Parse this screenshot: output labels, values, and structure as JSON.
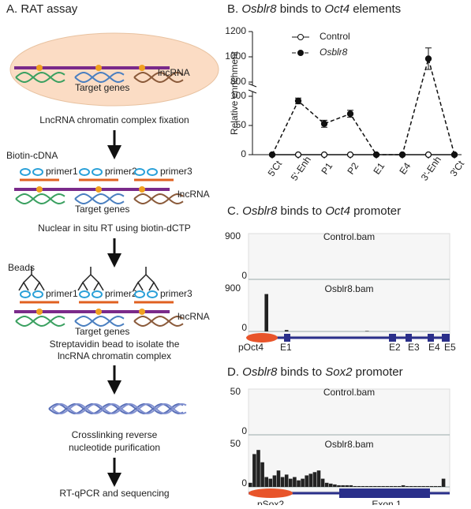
{
  "panel_a": {
    "title": "A. RAT assay",
    "lncrna": "lncRNA",
    "target_genes": "Target genes",
    "biotin_cdna": "Biotin-cDNA",
    "beads": "Beads",
    "primers": [
      "primer1",
      "primer2",
      "primer3"
    ],
    "steps": [
      "LncRNA chromatin complex fixation",
      "Nuclear in situ RT using biotin-dCTP",
      "Streptavidin bead to isolate the",
      "lncRNA chromatin complex",
      "Crosslinking reverse",
      "nucleotide purification",
      "RT-qPCR and sequencing"
    ]
  },
  "panel_b": {
    "title": [
      "B. ",
      "Osblr8",
      " binds to ",
      "Oct4",
      " elements"
    ],
    "chart": {
      "type": "line",
      "ylabel": "Relative enrichment",
      "categories": [
        "5'Ct",
        "5'-Enh",
        "P1",
        "P2",
        "E1",
        "E4",
        "3'-Enh",
        "3'Ct"
      ],
      "series": [
        {
          "name": "Control",
          "values": [
            0,
            0,
            0,
            0,
            0,
            0,
            0,
            0
          ]
        },
        {
          "name": "Osblr8",
          "values": [
            0,
            92,
            53,
            70,
            0,
            0,
            985,
            0
          ],
          "errors": [
            0,
            5,
            6,
            6,
            0,
            0,
            85,
            0
          ]
        }
      ],
      "ylim": [
        0,
        1200
      ],
      "ybreak": [
        100,
        800
      ],
      "yticks": [
        0,
        50,
        100,
        800,
        1000,
        1200
      ]
    }
  },
  "panel_c": {
    "title": [
      "C. ",
      "Osblr8",
      " binds to ",
      "Oct4",
      " promoter"
    ],
    "tracks": [
      {
        "name": "Control.bam",
        "max": 900,
        "min": 0
      },
      {
        "name": "Osblr8.bam",
        "max": 900,
        "min": 0,
        "coverage": [
          0,
          0,
          0,
          0,
          820,
          0,
          0,
          0,
          0,
          30,
          0,
          0,
          0,
          0,
          0,
          0,
          0,
          0,
          0,
          0,
          0,
          0,
          0,
          0,
          0,
          0,
          0,
          0,
          0,
          10,
          0,
          0,
          0,
          0,
          0,
          0,
          0,
          0,
          0,
          0,
          0,
          0,
          0,
          0,
          0,
          0,
          0,
          0,
          0,
          0
        ]
      }
    ],
    "features": [
      "pOct4",
      "E1",
      "E2",
      "E3",
      "E4",
      "E5"
    ]
  },
  "panel_d": {
    "title": [
      "D. ",
      "Osblr8",
      " binds to ",
      "Sox2",
      " promoter"
    ],
    "tracks": [
      {
        "name": "Control.bam",
        "max": 50,
        "min": 0
      },
      {
        "name": "Osblr8.bam",
        "max": 50,
        "min": 0,
        "coverage": [
          5,
          40,
          45,
          30,
          12,
          10,
          14,
          20,
          12,
          15,
          10,
          12,
          8,
          10,
          14,
          16,
          18,
          20,
          10,
          5,
          4,
          3,
          2,
          2,
          2,
          2,
          1,
          1,
          1,
          1,
          1,
          1,
          1,
          1,
          1,
          1,
          1,
          1,
          2,
          1,
          1,
          1,
          1,
          1,
          1,
          1,
          1,
          1,
          10,
          0
        ]
      }
    ],
    "features": [
      "pSox2",
      "Exon 1"
    ]
  }
}
